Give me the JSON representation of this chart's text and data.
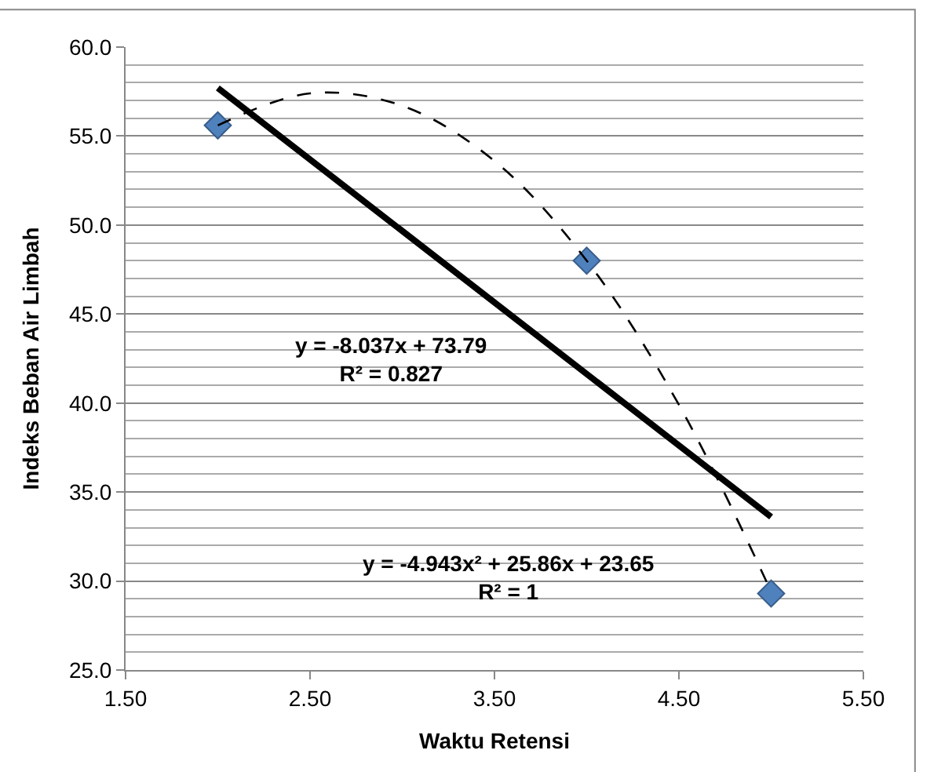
{
  "chart_data": {
    "type": "scatter",
    "xlabel": "Waktu Retensi",
    "ylabel": "Indeks Beban Air Limbah",
    "xlim": [
      1.5,
      5.5
    ],
    "xticks": [
      {
        "value": 1.5,
        "label": "1.50"
      },
      {
        "value": 2.5,
        "label": "2.50"
      },
      {
        "value": 3.5,
        "label": "3.50"
      },
      {
        "value": 4.5,
        "label": "4.50"
      },
      {
        "value": 5.5,
        "label": "5.50"
      }
    ],
    "ylim": [
      25,
      60
    ],
    "yticks": [
      {
        "value": 25,
        "label": "25.0"
      },
      {
        "value": 30,
        "label": "30.0"
      },
      {
        "value": 35,
        "label": "35.0"
      },
      {
        "value": 40,
        "label": "40.0"
      },
      {
        "value": 45,
        "label": "45.0"
      },
      {
        "value": 50,
        "label": "50.0"
      },
      {
        "value": 55,
        "label": "55.0"
      },
      {
        "value": 60,
        "label": "60.0"
      }
    ],
    "grid": "y",
    "series": [
      {
        "color": "#4f81bd",
        "marker": "diamond",
        "x": [
          2,
          4,
          5
        ],
        "values": [
          55.6,
          48.0,
          29.3
        ]
      },
      {
        "type": "line",
        "color": "#000000",
        "marker": "none",
        "line_style": "solid",
        "x": [
          2,
          5
        ],
        "values": [
          57.7,
          33.6
        ]
      },
      {
        "type": "line",
        "color": "#000000",
        "marker": "none",
        "line_style": "dashed",
        "x": [
          2,
          2.5,
          3,
          3.5,
          4,
          4.5,
          5
        ],
        "values": [
          55.6,
          57.4,
          56.7,
          53.6,
          48.0,
          39.9,
          29.4
        ]
      }
    ],
    "annotations": [
      "y = -8.037x + 73.79\nR² = 0.827",
      "y = -4.943x² + 25.86x + 23.65\nR² = 1"
    ]
  }
}
